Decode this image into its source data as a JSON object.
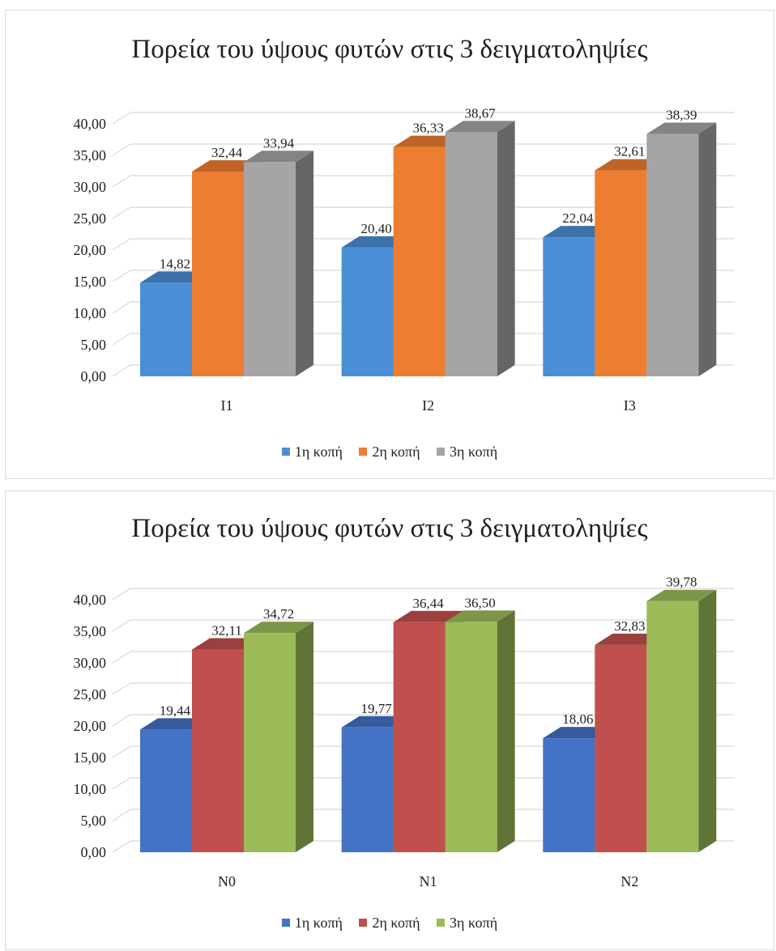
{
  "chart_data": [
    {
      "type": "bar",
      "title": "Πορεία του ύψους φυτών στις 3 δειγματοληψίες",
      "categories": [
        "I1",
        "I2",
        "I3"
      ],
      "series": [
        {
          "name": "1η κοπή",
          "values": [
            14.82,
            20.4,
            22.04
          ],
          "labels": [
            "14,82",
            "20,40",
            "22,04"
          ],
          "color": "#4a8fd6"
        },
        {
          "name": "2η κοπή",
          "values": [
            32.44,
            36.33,
            32.61
          ],
          "labels": [
            "32,44",
            "36,33",
            "32,61"
          ],
          "color": "#ed7d31"
        },
        {
          "name": "3η κοπή",
          "values": [
            33.94,
            38.67,
            38.39
          ],
          "labels": [
            "33,94",
            "38,67",
            "38,39"
          ],
          "color": "#a5a5a5"
        }
      ],
      "ylim": [
        0,
        40
      ],
      "yticks": [
        "0,00",
        "5,00",
        "10,00",
        "15,00",
        "20,00",
        "25,00",
        "30,00",
        "35,00",
        "40,00"
      ],
      "grid": true,
      "legend": "bottom",
      "style": "3d-column"
    },
    {
      "type": "bar",
      "title": "Πορεία του ύψους φυτών στις 3 δειγματοληψίες",
      "categories": [
        "N0",
        "N1",
        "N2"
      ],
      "series": [
        {
          "name": "1η κοπή",
          "values": [
            19.44,
            19.77,
            18.06
          ],
          "labels": [
            "19,44",
            "19,77",
            "18,06"
          ],
          "color": "#4472c4"
        },
        {
          "name": "2η κοπή",
          "values": [
            32.11,
            36.44,
            32.83
          ],
          "labels": [
            "32,11",
            "36,44",
            "32,83"
          ],
          "color": "#c0504d"
        },
        {
          "name": "3η κοπή",
          "values": [
            34.72,
            36.5,
            39.78
          ],
          "labels": [
            "34,72",
            "36,50",
            "39,78"
          ],
          "color": "#9bbb59"
        }
      ],
      "ylim": [
        0,
        40
      ],
      "yticks": [
        "0,00",
        "5,00",
        "10,00",
        "15,00",
        "20,00",
        "25,00",
        "30,00",
        "35,00",
        "40,00"
      ],
      "grid": true,
      "legend": "bottom",
      "style": "3d-column"
    }
  ]
}
